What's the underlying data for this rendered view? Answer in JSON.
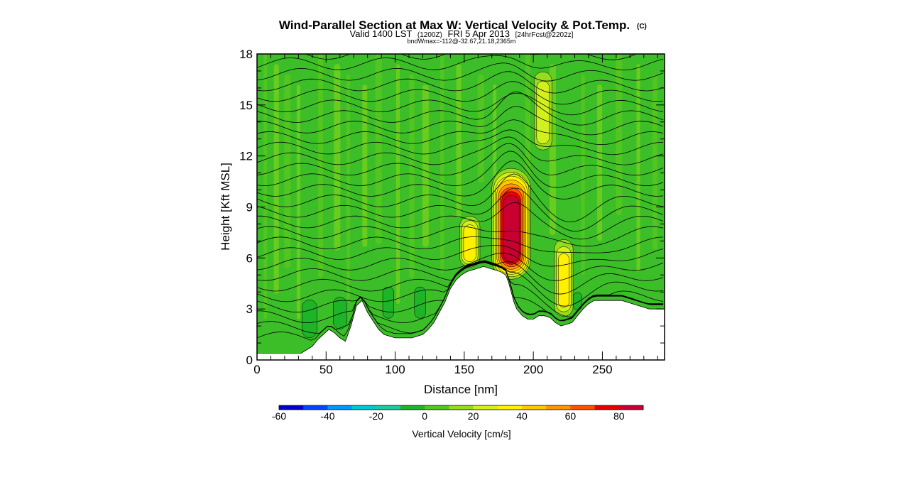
{
  "chart_data": {
    "type": "heatmap",
    "title": "Wind-Parallel Section at Max W: Vertical Velocity & Pot.Temp.",
    "title_mark": "(C)",
    "subtitle_prefix": "Valid 1400 LST",
    "subtitle_z": "(1200Z)",
    "subtitle_date": "FRI 5 Apr 2013",
    "subtitle_fcst": "[24hrFcst@2202z]",
    "subtitle_small": "bndWmax=-112@-32.67,21.18,2365m",
    "xlabel": "Distance [nm]",
    "ylabel": "Height [Kft MSL]",
    "xlim": [
      0,
      295
    ],
    "ylim": [
      0,
      18
    ],
    "x_ticks": [
      0,
      50,
      100,
      150,
      200,
      250
    ],
    "x_tick_labels": [
      "0",
      "50",
      "100",
      "150",
      "200",
      "250"
    ],
    "y_ticks": [
      0,
      3,
      6,
      9,
      12,
      15,
      18
    ],
    "y_tick_labels": [
      "0",
      "3",
      "6",
      "9",
      "12",
      "15",
      "18"
    ],
    "terrain": [
      [
        0,
        0.4
      ],
      [
        16,
        0.4
      ],
      [
        32,
        0.4
      ],
      [
        36,
        0.6
      ],
      [
        40,
        0.8
      ],
      [
        44,
        1.2
      ],
      [
        48,
        1.5
      ],
      [
        52,
        1.8
      ],
      [
        56,
        1.6
      ],
      [
        60,
        1.3
      ],
      [
        64,
        1.1
      ],
      [
        68,
        2.0
      ],
      [
        72,
        3.2
      ],
      [
        76,
        3.5
      ],
      [
        80,
        2.8
      ],
      [
        84,
        2.3
      ],
      [
        88,
        1.8
      ],
      [
        92,
        1.5
      ],
      [
        96,
        1.4
      ],
      [
        100,
        1.3
      ],
      [
        104,
        1.3
      ],
      [
        108,
        1.3
      ],
      [
        112,
        1.3
      ],
      [
        116,
        1.4
      ],
      [
        120,
        1.5
      ],
      [
        124,
        1.8
      ],
      [
        128,
        2.2
      ],
      [
        132,
        2.8
      ],
      [
        136,
        3.4
      ],
      [
        140,
        4.2
      ],
      [
        144,
        4.7
      ],
      [
        148,
        5.0
      ],
      [
        152,
        5.2
      ],
      [
        156,
        5.3
      ],
      [
        160,
        5.4
      ],
      [
        164,
        5.5
      ],
      [
        168,
        5.4
      ],
      [
        172,
        5.3
      ],
      [
        176,
        5.2
      ],
      [
        180,
        5.0
      ],
      [
        182,
        4.6
      ],
      [
        184,
        4.0
      ],
      [
        186,
        3.4
      ],
      [
        188,
        3.0
      ],
      [
        192,
        2.6
      ],
      [
        196,
        2.4
      ],
      [
        200,
        2.4
      ],
      [
        204,
        2.6
      ],
      [
        208,
        2.6
      ],
      [
        212,
        2.5
      ],
      [
        216,
        2.2
      ],
      [
        220,
        2.0
      ],
      [
        224,
        2.1
      ],
      [
        228,
        2.2
      ],
      [
        232,
        2.6
      ],
      [
        236,
        3.0
      ],
      [
        240,
        3.3
      ],
      [
        244,
        3.5
      ],
      [
        248,
        3.5
      ],
      [
        252,
        3.5
      ],
      [
        256,
        3.5
      ],
      [
        260,
        3.5
      ],
      [
        264,
        3.5
      ],
      [
        268,
        3.4
      ],
      [
        272,
        3.3
      ],
      [
        276,
        3.2
      ],
      [
        280,
        3.1
      ],
      [
        284,
        3.0
      ],
      [
        288,
        3.0
      ],
      [
        292,
        3.0
      ],
      [
        295,
        3.0
      ]
    ],
    "vertical_velocity_features": [
      {
        "x": 184,
        "y_base": 4.6,
        "y_top": 11.5,
        "peak_cm_s": 85
      },
      {
        "x": 154,
        "y_base": 5.3,
        "y_top": 8.7,
        "peak_cm_s": 38
      },
      {
        "x": 222,
        "y_base": 2.3,
        "y_top": 7.5,
        "peak_cm_s": 35
      },
      {
        "x": 207,
        "y_base": 12.0,
        "y_top": 17.5,
        "peak_cm_s": 28
      },
      {
        "x": 38,
        "y_base": 1.0,
        "y_top": 4.0,
        "peak_cm_s": -18
      },
      {
        "x": 60,
        "y_base": 1.5,
        "y_top": 4.2,
        "peak_cm_s": -15
      },
      {
        "x": 95,
        "y_base": 2.0,
        "y_top": 5.0,
        "peak_cm_s": -12
      },
      {
        "x": 118,
        "y_base": 2.0,
        "y_top": 5.0,
        "peak_cm_s": -12
      },
      {
        "x": 232,
        "y_base": 2.6,
        "y_top": 4.5,
        "peak_cm_s": -10
      }
    ],
    "colorbar": {
      "label": "Vertical Velocity [cm/s]",
      "min": -60,
      "max": 90,
      "step": 10,
      "ticks": [
        -60,
        -40,
        -20,
        0,
        20,
        40,
        60,
        80
      ],
      "tick_labels": [
        "-60",
        "-40",
        "-20",
        "0",
        "20",
        "40",
        "60",
        "80"
      ],
      "colors": [
        "#0000c8",
        "#0046ff",
        "#0096ff",
        "#00c8d2",
        "#1ec8a0",
        "#1eb428",
        "#50c81e",
        "#96dc1e",
        "#d2f01e",
        "#fff000",
        "#ffc800",
        "#ff9600",
        "#ff5000",
        "#e60000",
        "#c80032"
      ]
    }
  }
}
